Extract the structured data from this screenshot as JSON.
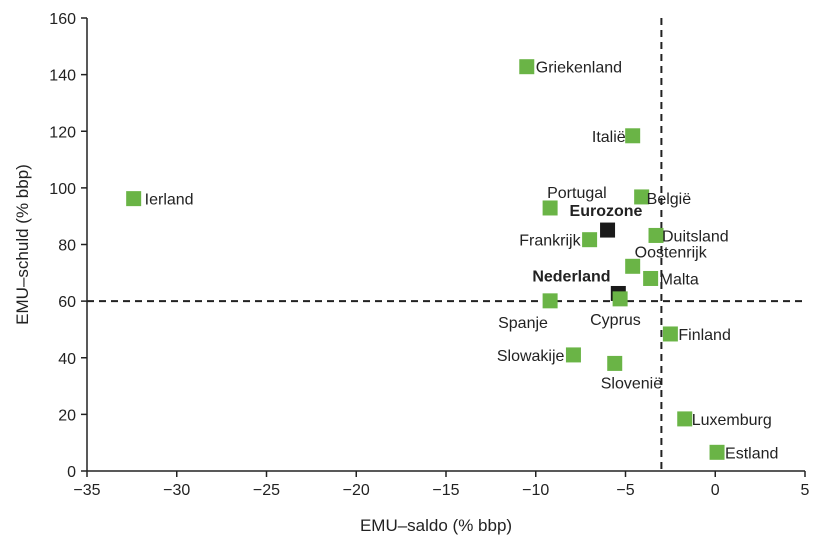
{
  "chart_data": {
    "type": "scatter",
    "xlabel": "EMU–saldo (% bbp)",
    "ylabel": "EMU–schuld (% bbp)",
    "xlim": [
      -35,
      5
    ],
    "ylim": [
      0,
      160
    ],
    "x_ticks": [
      -35,
      -30,
      -25,
      -20,
      -15,
      -10,
      -5,
      0,
      5
    ],
    "y_ticks": [
      0,
      20,
      40,
      60,
      80,
      100,
      120,
      140,
      160
    ],
    "x_tick_labels": [
      "−35",
      "−30",
      "−25",
      "−20",
      "−15",
      "−10",
      "−5",
      "0",
      "5"
    ],
    "y_tick_labels": [
      "0",
      "20",
      "40",
      "60",
      "80",
      "100",
      "120",
      "140",
      "160"
    ],
    "reference_lines": {
      "x": -3,
      "y": 60,
      "style": "dashed"
    },
    "grid": false,
    "colors": {
      "country": "#6ab446",
      "aggregate": "#1a1a1a"
    },
    "points": [
      {
        "label": "Ierland",
        "x": -32.4,
        "y": 96.2,
        "kind": "country"
      },
      {
        "label": "Griekenland",
        "x": -10.5,
        "y": 142.8,
        "kind": "country"
      },
      {
        "label": "Italië",
        "x": -4.6,
        "y": 118.4,
        "kind": "country"
      },
      {
        "label": "Portugal",
        "x": -9.2,
        "y": 92.9,
        "kind": "country"
      },
      {
        "label": "België",
        "x": -4.1,
        "y": 96.8,
        "kind": "country"
      },
      {
        "label": "Eurozone",
        "x": -6.0,
        "y": 85.1,
        "kind": "aggregate"
      },
      {
        "label": "Duitsland",
        "x": -3.3,
        "y": 83.2,
        "kind": "country"
      },
      {
        "label": "Frankrijk",
        "x": -7.0,
        "y": 81.7,
        "kind": "country"
      },
      {
        "label": "Oostenrijk",
        "x": -4.6,
        "y": 72.3,
        "kind": "country"
      },
      {
        "label": "Malta",
        "x": -3.6,
        "y": 68.0,
        "kind": "country"
      },
      {
        "label": "Nederland",
        "x": -5.4,
        "y": 62.7,
        "kind": "aggregate"
      },
      {
        "label": "Spanje",
        "x": -9.2,
        "y": 60.1,
        "kind": "country"
      },
      {
        "label": "Cyprus",
        "x": -5.3,
        "y": 60.8,
        "kind": "country"
      },
      {
        "label": "Finland",
        "x": -2.5,
        "y": 48.4,
        "kind": "country"
      },
      {
        "label": "Slowakije",
        "x": -7.9,
        "y": 41.0,
        "kind": "country"
      },
      {
        "label": "Slovenië",
        "x": -5.6,
        "y": 38.0,
        "kind": "country"
      },
      {
        "label": "Luxemburg",
        "x": -1.7,
        "y": 18.4,
        "kind": "country"
      },
      {
        "label": "Estland",
        "x": 0.1,
        "y": 6.6,
        "kind": "country"
      }
    ]
  }
}
